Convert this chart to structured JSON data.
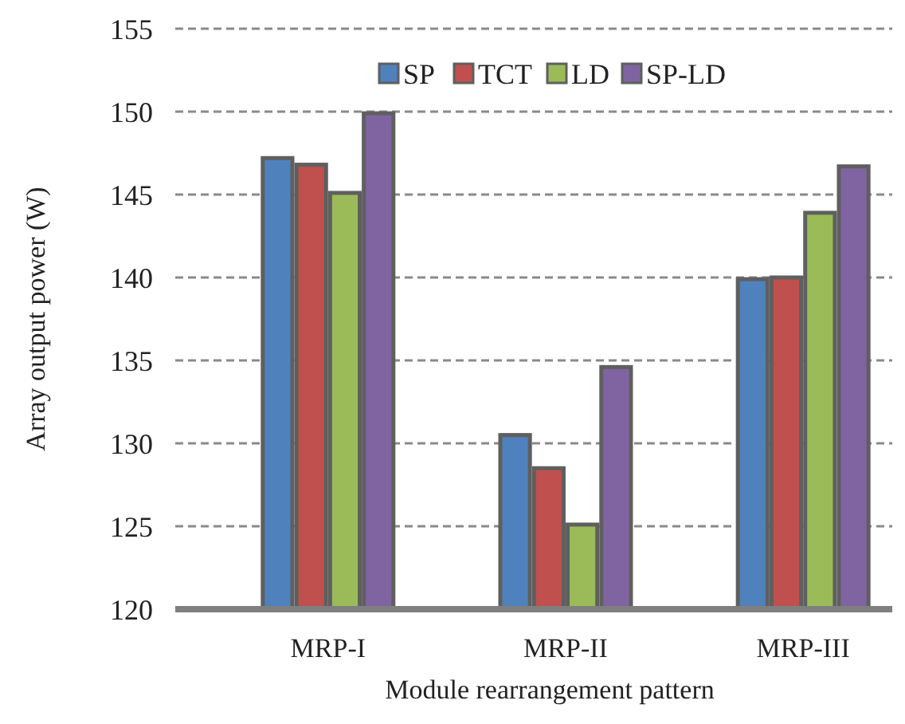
{
  "chart_data": {
    "type": "bar",
    "xlabel": "Module rearrangement pattern",
    "ylabel": "Array output power (W)",
    "categories": [
      "MRP-I",
      "MRP-II",
      "MRP-III"
    ],
    "series": [
      {
        "name": "SP",
        "color": "#4f81bd",
        "values": [
          147.2,
          130.5,
          139.9
        ]
      },
      {
        "name": "TCT",
        "color": "#c0504d",
        "values": [
          146.8,
          128.5,
          140.0
        ]
      },
      {
        "name": "LD",
        "color": "#9bbb59",
        "values": [
          145.1,
          125.1,
          143.9
        ]
      },
      {
        "name": "SP-LD",
        "color": "#8064a2",
        "values": [
          149.9,
          134.6,
          146.7
        ]
      }
    ],
    "ylim": [
      120,
      155
    ],
    "yticks": [
      120,
      125,
      130,
      135,
      140,
      145,
      150,
      155
    ],
    "grid": "y",
    "legend": "top"
  }
}
